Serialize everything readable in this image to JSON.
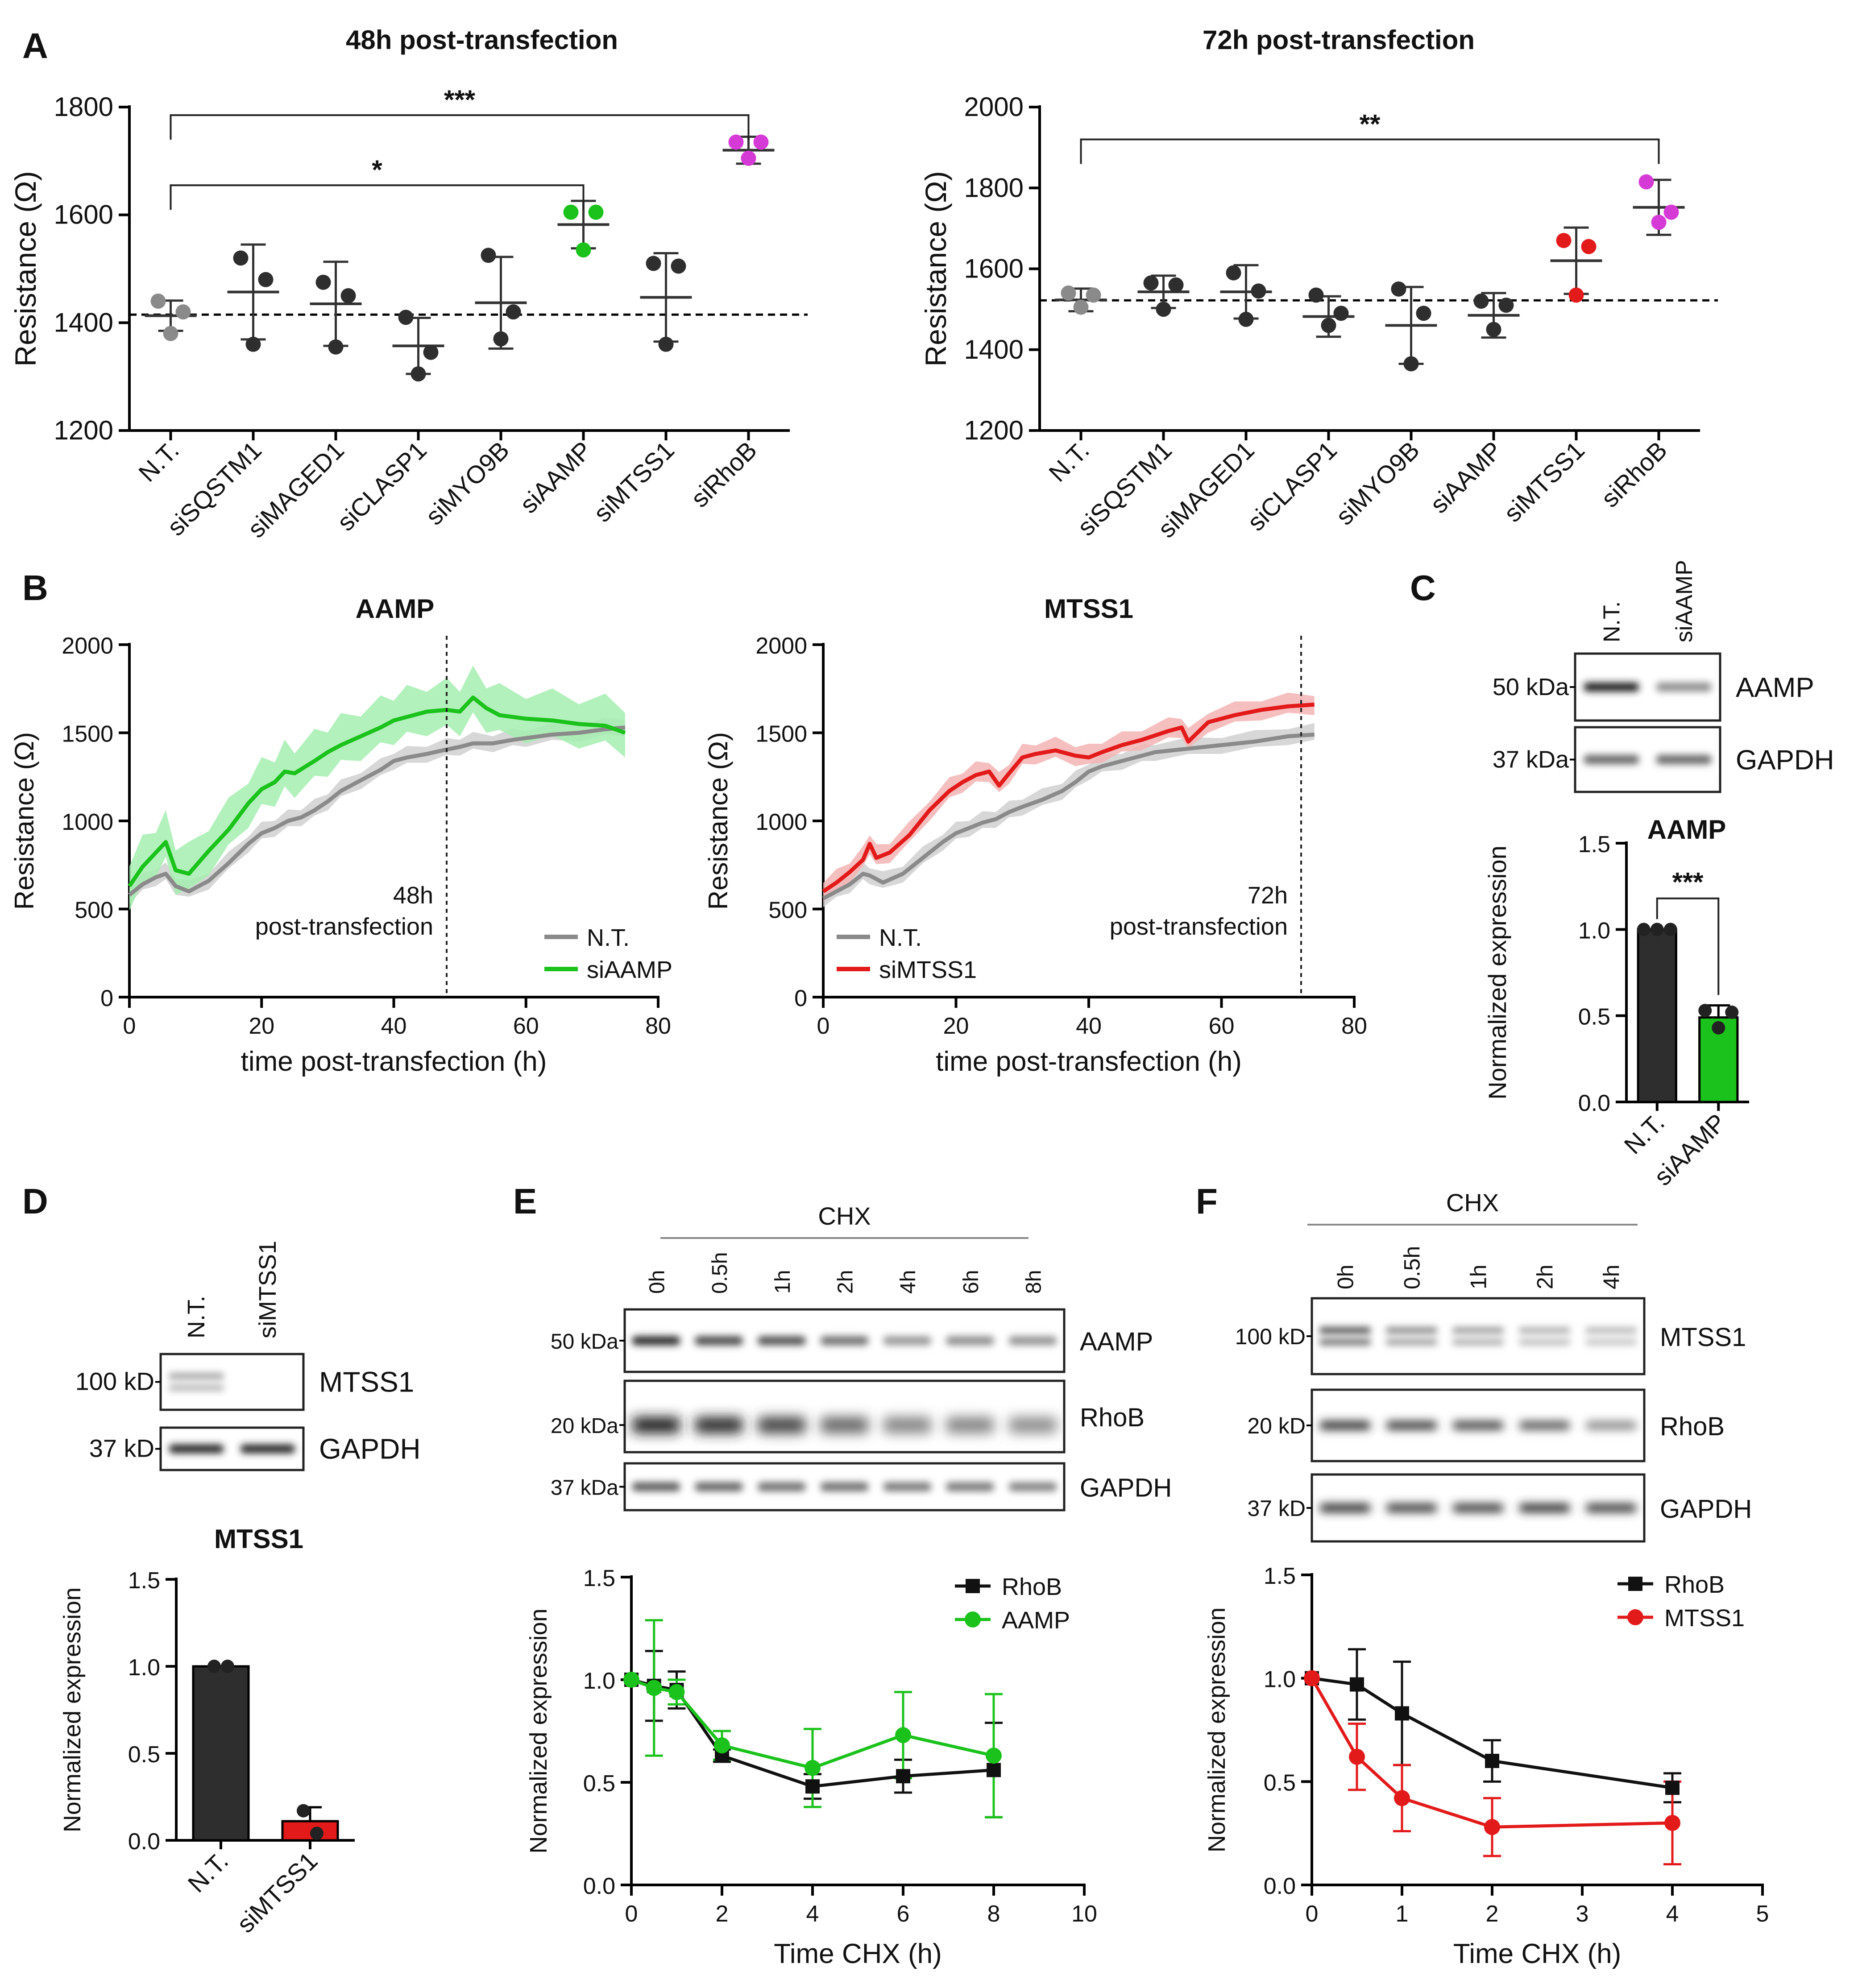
{
  "panel_labels": {
    "A": "A",
    "B": "B",
    "C": "C",
    "D": "D",
    "E": "E",
    "F": "F"
  },
  "colors": {
    "nt": "#8a8a8a",
    "dark": "#2e2e2e",
    "green": "#1bc21b",
    "magenta": "#d63ad6",
    "red": "#e31a1a",
    "black": "#111111",
    "green_band": "#a6eeb0",
    "red_band": "#f4b4b4",
    "gray_band": "#d0d0d0"
  },
  "chart_data": [
    {
      "id": "A1",
      "type": "scatter",
      "title": "48h post-transfection",
      "ylabel": "Resistance (Ω)",
      "ylim": [
        1200,
        1800
      ],
      "yticks": [
        1200,
        1400,
        1600,
        1800
      ],
      "categories": [
        "N.T.",
        "siSQSTM1",
        "siMAGED1",
        "siCLASP1",
        "siMYO9B",
        "siAAMP",
        "siMTSS1",
        "siRhoB"
      ],
      "baseline": 1415,
      "groups": [
        {
          "points": [
            1380,
            1420,
            1440
          ],
          "mean": 1413,
          "sd": 28,
          "color": "nt"
        },
        {
          "points": [
            1360,
            1480,
            1520
          ],
          "mean": 1457,
          "sd": 88,
          "color": "dark"
        },
        {
          "points": [
            1355,
            1450,
            1475
          ],
          "mean": 1435,
          "sd": 78,
          "color": "dark"
        },
        {
          "points": [
            1305,
            1345,
            1410
          ],
          "mean": 1357,
          "sd": 52,
          "color": "dark"
        },
        {
          "points": [
            1370,
            1420,
            1525
          ],
          "mean": 1437,
          "sd": 85,
          "color": "dark"
        },
        {
          "points": [
            1535,
            1605,
            1605
          ],
          "mean": 1582,
          "sd": 44,
          "color": "green"
        },
        {
          "points": [
            1360,
            1505,
            1510
          ],
          "mean": 1447,
          "sd": 82,
          "color": "dark"
        },
        {
          "points": [
            1705,
            1735,
            1735
          ],
          "mean": 1720,
          "sd": 25,
          "color": "magenta"
        }
      ],
      "brackets": [
        {
          "from": 0,
          "to": 5,
          "label": "*",
          "y": 1655
        },
        {
          "from": 0,
          "to": 7,
          "label": "***",
          "y": 1785
        }
      ]
    },
    {
      "id": "A2",
      "type": "scatter",
      "title": "72h post-transfection",
      "ylabel": "Resistance (Ω)",
      "ylim": [
        1200,
        2000
      ],
      "yticks": [
        1200,
        1400,
        1600,
        1800,
        2000
      ],
      "categories": [
        "N.T.",
        "siSQSTM1",
        "siMAGED1",
        "siCLASP1",
        "siMYO9B",
        "siAAMP",
        "siMTSS1",
        "siRhoB"
      ],
      "baseline": 1522,
      "groups": [
        {
          "points": [
            1505,
            1535,
            1540
          ],
          "mean": 1523,
          "sd": 28,
          "color": "nt"
        },
        {
          "points": [
            1500,
            1560,
            1565
          ],
          "mean": 1543,
          "sd": 40,
          "color": "dark"
        },
        {
          "points": [
            1475,
            1545,
            1590
          ],
          "mean": 1543,
          "sd": 66,
          "color": "dark"
        },
        {
          "points": [
            1460,
            1490,
            1535
          ],
          "mean": 1482,
          "sd": 50,
          "color": "dark"
        },
        {
          "points": [
            1365,
            1490,
            1550
          ],
          "mean": 1460,
          "sd": 95,
          "color": "dark"
        },
        {
          "points": [
            1450,
            1510,
            1520
          ],
          "mean": 1485,
          "sd": 55,
          "color": "dark"
        },
        {
          "points": [
            1535,
            1655,
            1670
          ],
          "mean": 1620,
          "sd": 82,
          "color": "red"
        },
        {
          "points": [
            1715,
            1740,
            1815
          ],
          "mean": 1752,
          "sd": 68,
          "color": "magenta"
        }
      ],
      "brackets": [
        {
          "from": 0,
          "to": 7,
          "label": "**",
          "y": 1920
        }
      ]
    },
    {
      "id": "B1",
      "type": "line",
      "title": "AAMP",
      "xlabel": "time post-transfection (h)",
      "ylabel": "Resistance (Ω)",
      "xlim": [
        0,
        80
      ],
      "ylim": [
        0,
        2000
      ],
      "xticks": [
        0,
        20,
        40,
        60,
        80
      ],
      "yticks": [
        0,
        500,
        1000,
        1500,
        2000
      ],
      "vline": 48,
      "annotation": [
        "48h",
        "post-transfection"
      ],
      "series": [
        {
          "name": "N.T.",
          "color": "nt",
          "band": "gray_band",
          "band_width": 50,
          "x": [
            0,
            2,
            4,
            5.5,
            7,
            9,
            12,
            15,
            18,
            20,
            22,
            24,
            26,
            28,
            30,
            32,
            35,
            38,
            40,
            42,
            45,
            48,
            50,
            52,
            55,
            58,
            60,
            64,
            68,
            72,
            75
          ],
          "y": [
            580,
            640,
            680,
            700,
            630,
            600,
            660,
            760,
            870,
            930,
            960,
            1000,
            1020,
            1060,
            1110,
            1170,
            1230,
            1290,
            1340,
            1360,
            1380,
            1405,
            1420,
            1440,
            1440,
            1460,
            1470,
            1490,
            1500,
            1520,
            1530
          ]
        },
        {
          "name": "siAAMP",
          "color": "green",
          "band": "green_band",
          "band_width": 140,
          "x": [
            0,
            2,
            4,
            5.5,
            7,
            9,
            12,
            15,
            18,
            20,
            22,
            23.5,
            25,
            28,
            30,
            32,
            35,
            38,
            40,
            42,
            45,
            48,
            50,
            52,
            54,
            56,
            60,
            64,
            68,
            72,
            75
          ],
          "y": [
            630,
            740,
            820,
            880,
            720,
            700,
            830,
            950,
            1100,
            1180,
            1220,
            1280,
            1270,
            1340,
            1390,
            1430,
            1480,
            1530,
            1570,
            1590,
            1620,
            1630,
            1620,
            1700,
            1640,
            1600,
            1580,
            1570,
            1550,
            1540,
            1500
          ]
        }
      ]
    },
    {
      "id": "B2",
      "type": "line",
      "title": "MTSS1",
      "xlabel": "time post-transfection (h)",
      "ylabel": "Resistance (Ω)",
      "xlim": [
        0,
        80
      ],
      "ylim": [
        0,
        2000
      ],
      "xticks": [
        0,
        20,
        40,
        60,
        80
      ],
      "yticks": [
        0,
        500,
        1000,
        1500,
        2000
      ],
      "vline": 72,
      "annotation": [
        "72h",
        "post-transfection"
      ],
      "series": [
        {
          "name": "N.T.",
          "color": "nt",
          "band": "gray_band",
          "band_width": 50,
          "x": [
            0,
            2,
            4,
            6,
            7,
            9,
            12,
            15,
            18,
            20,
            22,
            24,
            26,
            28,
            30,
            33,
            36,
            38,
            40,
            42,
            45,
            48,
            50,
            55,
            60,
            65,
            70,
            74
          ],
          "y": [
            560,
            600,
            640,
            700,
            690,
            650,
            700,
            790,
            880,
            930,
            960,
            990,
            1010,
            1050,
            1080,
            1120,
            1170,
            1220,
            1280,
            1310,
            1340,
            1370,
            1390,
            1410,
            1430,
            1450,
            1480,
            1490
          ]
        },
        {
          "name": "siMTSS1",
          "color": "red",
          "band": "red_band",
          "band_width": 60,
          "x": [
            0,
            2,
            4,
            6,
            7,
            8,
            10,
            13,
            16,
            19,
            21,
            23,
            25,
            26.5,
            28,
            30,
            32,
            35,
            38,
            40,
            42,
            45,
            48,
            52,
            54,
            55,
            58,
            62,
            66,
            70,
            74
          ],
          "y": [
            600,
            650,
            710,
            780,
            870,
            790,
            820,
            920,
            1060,
            1170,
            1220,
            1260,
            1280,
            1200,
            1270,
            1360,
            1380,
            1400,
            1370,
            1360,
            1390,
            1430,
            1460,
            1510,
            1530,
            1450,
            1560,
            1600,
            1630,
            1650,
            1660
          ]
        }
      ]
    },
    {
      "id": "C",
      "type": "bar",
      "title": "AAMP",
      "ylabel": "Normalized expression",
      "categories": [
        "N.T.",
        "siAAMP"
      ],
      "values": [
        1.0,
        0.49
      ],
      "errors": [
        0.0,
        0.07
      ],
      "ylim": [
        0,
        1.5
      ],
      "yticks": [
        "0.0",
        "0.5",
        "1.0",
        "1.5"
      ],
      "points": [
        [
          1.0,
          1.0,
          1.0
        ],
        [
          0.53,
          0.43,
          0.52
        ]
      ],
      "bar_colors": [
        "dark",
        "green"
      ],
      "significance": "***"
    },
    {
      "id": "D",
      "type": "bar",
      "title": "MTSS1",
      "ylabel": "Normalized expression",
      "categories": [
        "N.T.",
        "siMTSS1"
      ],
      "values": [
        1.0,
        0.11
      ],
      "errors": [
        0.0,
        0.08
      ],
      "ylim": [
        0,
        1.5
      ],
      "yticks": [
        "0.0",
        "0.5",
        "1.0",
        "1.5"
      ],
      "points": [
        [
          1.0,
          1.0
        ],
        [
          0.17,
          0.04
        ]
      ],
      "bar_colors": [
        "dark",
        "red"
      ]
    },
    {
      "id": "E",
      "type": "line",
      "xlabel": "Time CHX (h)",
      "ylabel": "Normalized expression",
      "xlim": [
        0,
        10
      ],
      "ylim": [
        0,
        1.5
      ],
      "xticks": [
        0,
        2,
        4,
        6,
        8,
        10
      ],
      "yticks": [
        "0.0",
        "0.5",
        "1.0",
        "1.5"
      ],
      "series": [
        {
          "name": "RhoB",
          "color": "black",
          "marker": "square",
          "x": [
            0,
            0.5,
            1,
            2,
            4,
            6,
            8
          ],
          "y": [
            1.0,
            0.97,
            0.95,
            0.63,
            0.48,
            0.53,
            0.56
          ],
          "err": [
            0,
            0.17,
            0.09,
            0.03,
            0.06,
            0.08,
            0.23
          ]
        },
        {
          "name": "AAMP",
          "color": "green",
          "marker": "circle",
          "x": [
            0,
            0.5,
            1,
            2,
            4,
            6,
            8
          ],
          "y": [
            1.0,
            0.96,
            0.94,
            0.68,
            0.57,
            0.73,
            0.63
          ],
          "err": [
            0,
            0.33,
            0.06,
            0.07,
            0.19,
            0.21,
            0.3
          ]
        }
      ]
    },
    {
      "id": "F",
      "type": "line",
      "xlabel": "Time CHX (h)",
      "ylabel": "Normalized expression",
      "xlim": [
        0,
        5
      ],
      "ylim": [
        0,
        1.5
      ],
      "xticks": [
        0,
        1,
        2,
        3,
        4,
        5
      ],
      "yticks": [
        "0.0",
        "0.5",
        "1.0",
        "1.5"
      ],
      "series": [
        {
          "name": "RhoB",
          "color": "black",
          "marker": "square",
          "x": [
            0,
            0.5,
            1,
            2,
            4
          ],
          "y": [
            1.0,
            0.97,
            0.83,
            0.6,
            0.47
          ],
          "err": [
            0,
            0.17,
            0.25,
            0.1,
            0.07
          ]
        },
        {
          "name": "MTSS1",
          "color": "red",
          "marker": "circle",
          "x": [
            0,
            0.5,
            1,
            2,
            4
          ],
          "y": [
            1.0,
            0.62,
            0.42,
            0.28,
            0.3
          ],
          "err": [
            0,
            0.16,
            0.16,
            0.14,
            0.2
          ]
        }
      ]
    }
  ],
  "blots": {
    "C": {
      "lanes": [
        "N.T.",
        "siAAMP"
      ],
      "rows": [
        {
          "protein": "AAMP",
          "marker": "50 kDa",
          "bands": [
            1.0,
            0.45
          ],
          "blur": 8
        },
        {
          "protein": "GAPDH",
          "marker": "37 kDa",
          "bands": [
            0.65,
            0.65
          ],
          "blur": 8
        }
      ]
    },
    "D": {
      "lanes": [
        "N.T.",
        "siMTSS1"
      ],
      "rows": [
        {
          "protein": "MTSS1",
          "marker": "100 kD",
          "bands": [
            0.35,
            0.0
          ],
          "double": true,
          "blur": 8
        },
        {
          "protein": "GAPDH",
          "marker": "37 kD",
          "bands": [
            0.95,
            0.95
          ],
          "blur": 8
        }
      ]
    },
    "E": {
      "header": "CHX",
      "lanes": [
        "0h",
        "0.5h",
        "1h",
        "2h",
        "4h",
        "6h",
        "8h"
      ],
      "rows": [
        {
          "protein": "AAMP",
          "marker": "50 kDa",
          "bands": [
            0.95,
            0.8,
            0.75,
            0.6,
            0.4,
            0.45,
            0.42
          ],
          "blur": 8
        },
        {
          "protein": "RhoB",
          "marker": "20 kDa",
          "bands": [
            1.0,
            0.95,
            0.85,
            0.65,
            0.5,
            0.5,
            0.45
          ],
          "thick": true,
          "blur": 14
        },
        {
          "protein": "GAPDH",
          "marker": "37 kDa",
          "bands": [
            0.7,
            0.65,
            0.6,
            0.6,
            0.55,
            0.55,
            0.5
          ],
          "blur": 8
        }
      ]
    },
    "F": {
      "header": "CHX",
      "lanes": [
        "0h",
        "0.5h",
        "1h",
        "2h",
        "4h"
      ],
      "rows": [
        {
          "protein": "MTSS1",
          "marker": "100 kD",
          "bands": [
            0.8,
            0.5,
            0.4,
            0.3,
            0.25
          ],
          "double": true,
          "blur": 8
        },
        {
          "protein": "RhoB",
          "marker": "20 kD",
          "bands": [
            0.9,
            0.85,
            0.8,
            0.7,
            0.45
          ],
          "blur": 10
        },
        {
          "protein": "GAPDH",
          "marker": "37 kD",
          "bands": [
            0.9,
            0.85,
            0.85,
            0.9,
            0.85
          ],
          "blur": 10
        }
      ]
    }
  }
}
